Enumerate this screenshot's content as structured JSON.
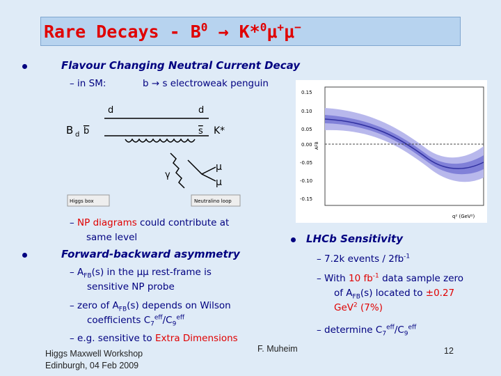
{
  "title": [
    "Rare Decays - B",
    "0",
    " → K*",
    "0",
    "μ",
    "+",
    "μ",
    "−"
  ],
  "fcnc": {
    "text": "Flavour Changing Neutral Current Decay",
    "in_sm": "– in SM:",
    "penguin": "b → s electroweak penguin",
    "np": [
      "– ",
      "NP diagrams",
      " could contribute at same level"
    ]
  },
  "diagram": {
    "labels": [
      "d",
      "d",
      "B",
      "d",
      "b",
      "s",
      "K*",
      "γ",
      "μ",
      "μ"
    ],
    "legend": [
      "Higgs box",
      "Neutralino loop"
    ]
  },
  "plot": {
    "yticks": [
      "0.15",
      "0.10",
      "0.05",
      "0.00",
      "-0.05",
      "-0.10",
      "-0.15"
    ],
    "ylabel": "AFB",
    "xlabel": "q² (GeV²)"
  },
  "fb": {
    "heading": "Forward-backward asymmetry",
    "items": [
      [
        "– ",
        "A",
        "FB",
        "(s) in the ",
        "μμ",
        " rest-frame is sensitive NP probe"
      ],
      [
        "– ",
        "zero of A",
        "FB",
        "(s) depends on Wilson coefficients C",
        "7",
        "eff",
        "/C",
        "9",
        "eff"
      ],
      [
        "– ",
        "e.g. sensitive to ",
        "Extra Dimensions"
      ]
    ]
  },
  "lhcb": {
    "heading": "LHCb Sensitivity",
    "items": [
      [
        "– ",
        "7.2k events / 2fb",
        "-1"
      ],
      [
        "– ",
        "With ",
        "10 fb",
        "-1",
        " data sample zero of A",
        "FB",
        "(s) located to ",
        "±0.27 GeV",
        "2",
        " (7%)"
      ],
      [
        "– ",
        "determine C",
        "7",
        "eff",
        "/C",
        "9",
        "eff"
      ]
    ]
  },
  "footer": {
    "workshop": "Higgs Maxwell Workshop",
    "place": "Edinburgh, 04 Feb 2009",
    "author": "F. Muheim",
    "page": "12"
  }
}
